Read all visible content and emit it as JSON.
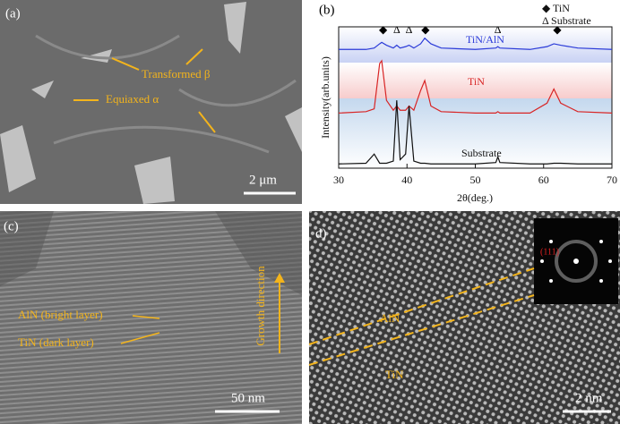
{
  "panels": {
    "a": {
      "label": "(a)",
      "transformed": "Transformed β",
      "equiaxed": "Equiaxed α",
      "scale": "2 μm"
    },
    "c": {
      "label": "(c)",
      "aln": "AlN (bright layer)",
      "tin": "TiN (dark layer)",
      "growth": "Growth direction",
      "scale": "50 nm"
    },
    "d": {
      "label": "d)",
      "plane": "(111)",
      "aln": "AlN",
      "tin": "TiN",
      "scale": "2 nm"
    }
  },
  "chart_data": {
    "type": "line",
    "panel_label": "(b)",
    "x_label": "2θ(deg.)",
    "y_label": "Intensity(arb.units)",
    "legend_notes": [
      "◆ TiN",
      "Δ Substrate"
    ],
    "peak_markers": [
      {
        "x": 36.5,
        "symbol": "◆"
      },
      {
        "x": 38.5,
        "symbol": "Δ"
      },
      {
        "x": 40.3,
        "symbol": "Δ"
      },
      {
        "x": 42.7,
        "symbol": "◆"
      },
      {
        "x": 53.3,
        "symbol": "Δ"
      },
      {
        "x": 62,
        "symbol": "◆"
      }
    ],
    "x": [
      30,
      34,
      35.2,
      36,
      36.3,
      37,
      38,
      38.5,
      39,
      39.8,
      40.3,
      41,
      42,
      42.6,
      43.5,
      45,
      50,
      53,
      53.3,
      53.6,
      58,
      60.5,
      61.5,
      62.5,
      65,
      70
    ],
    "series": [
      {
        "name": "TiN/AlN",
        "color": "#2a3ad8",
        "values": [
          84,
          84,
          85,
          88,
          89,
          87,
          85,
          87,
          85,
          86,
          87,
          85,
          88,
          92,
          88,
          85,
          84,
          85,
          86,
          85,
          84,
          86,
          88,
          87,
          85,
          84
        ]
      },
      {
        "name": "TiN",
        "color": "#d82424",
        "values": [
          39,
          40,
          42,
          74,
          76,
          48,
          41,
          44,
          41,
          41,
          44,
          41,
          55,
          62,
          44,
          40,
          39,
          39,
          40,
          39,
          39,
          46,
          56,
          46,
          40,
          39
        ]
      },
      {
        "name": "Substrate",
        "color": "#111111",
        "values": [
          3,
          3.5,
          10,
          3.5,
          3.5,
          3.5,
          5,
          48,
          6,
          10,
          44,
          5,
          3.5,
          3.5,
          3,
          3,
          3,
          4,
          8,
          4,
          3,
          3,
          3.5,
          3.5,
          3,
          3
        ]
      }
    ],
    "xlim": [
      30,
      70
    ],
    "ylim": [
      0,
      100
    ],
    "xticks": [
      30,
      40,
      50,
      60,
      70
    ]
  }
}
